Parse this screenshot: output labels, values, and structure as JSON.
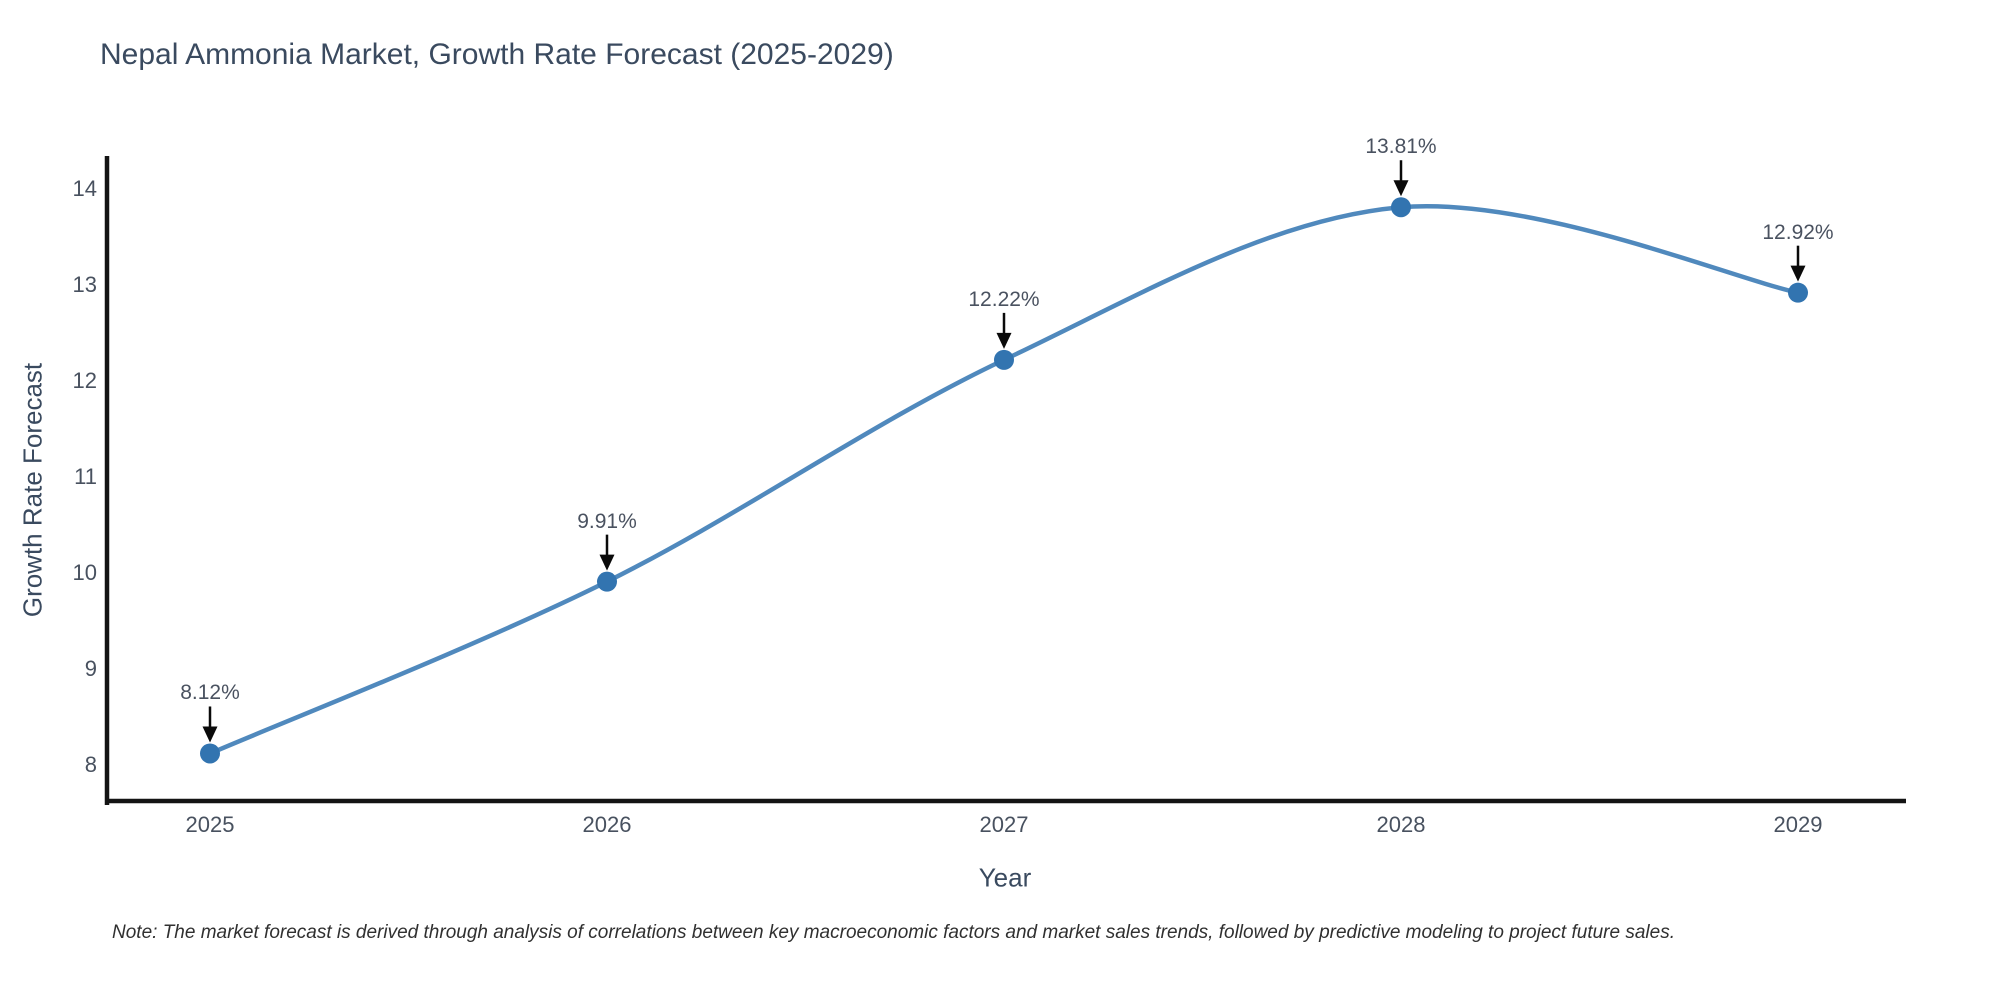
{
  "chart_data": {
    "type": "line",
    "title": "Nepal Ammonia Market, Growth Rate Forecast (2025-2029)",
    "xlabel": "Year",
    "ylabel": "Growth Rate Forecast",
    "categories": [
      "2025",
      "2026",
      "2027",
      "2028",
      "2029"
    ],
    "values": [
      8.12,
      9.91,
      12.22,
      13.81,
      12.92
    ],
    "point_labels": [
      "8.12%",
      "9.91%",
      "12.22%",
      "13.81%",
      "12.92%"
    ],
    "yticks": [
      8,
      9,
      10,
      11,
      12,
      13,
      14
    ],
    "ylim": [
      7.58,
      14.35
    ],
    "grid": false,
    "legend_position": "none",
    "line_smoothing": "spline",
    "colors": {
      "line": "#5089bd",
      "marker": "#3274b0",
      "axis": "#141414",
      "arrow": "#0a0a0a",
      "title_text": "#3a4a5f",
      "tick_text": "#48515f",
      "annotation_text": "#4a5260",
      "note_text": "#303030",
      "background": "#ffffff"
    }
  },
  "note": "Note: The market forecast is derived through analysis of correlations between key macroeconomic factors and market sales trends, followed by predictive modeling to project future sales."
}
